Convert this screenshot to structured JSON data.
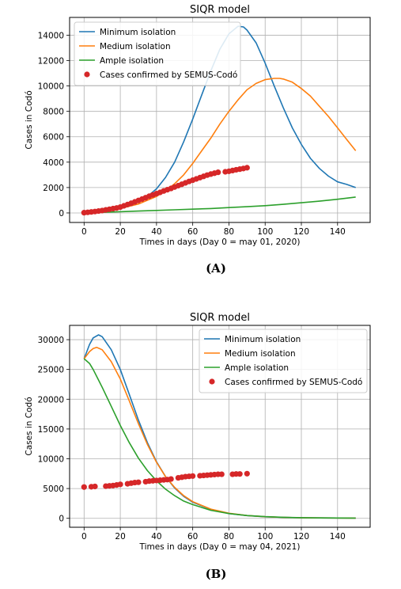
{
  "colors": {
    "minimum": "#1f77b4",
    "medium": "#ff7f0e",
    "ample": "#2ca02c",
    "cases": "#d62728"
  },
  "chart_data": [
    {
      "panel": "(A)",
      "type": "line",
      "title": "SIQR model",
      "xlabel": "Times in days (Day 0 = may 01, 2020)",
      "ylabel": "Cases in Codó",
      "xlim": [
        -8,
        158
      ],
      "ylim": [
        -750,
        15400
      ],
      "xticks": [
        0,
        20,
        40,
        60,
        80,
        100,
        120,
        140
      ],
      "yticks": [
        0,
        2000,
        4000,
        6000,
        8000,
        10000,
        12000,
        14000
      ],
      "grid": true,
      "legend": "top-left",
      "series": [
        {
          "name": "Minimum isolation",
          "color_key": "minimum",
          "x": [
            0,
            10,
            20,
            30,
            35,
            40,
            45,
            50,
            55,
            60,
            65,
            70,
            75,
            80,
            85,
            88,
            90,
            95,
            100,
            105,
            110,
            115,
            120,
            125,
            130,
            135,
            140,
            145,
            150
          ],
          "y": [
            0,
            150,
            400,
            900,
            1300,
            1900,
            2800,
            4000,
            5600,
            7400,
            9300,
            11200,
            12900,
            14100,
            14700,
            14650,
            14400,
            13400,
            11800,
            10000,
            8300,
            6700,
            5400,
            4300,
            3500,
            2900,
            2450,
            2250,
            2000
          ]
        },
        {
          "name": "Medium isolation",
          "color_key": "medium",
          "x": [
            0,
            10,
            20,
            30,
            40,
            45,
            50,
            55,
            60,
            65,
            70,
            75,
            80,
            85,
            90,
            95,
            100,
            105,
            108,
            110,
            115,
            120,
            125,
            130,
            135,
            140,
            145,
            150
          ],
          "y": [
            0,
            150,
            350,
            700,
            1300,
            1750,
            2300,
            3000,
            3900,
            4900,
            5900,
            7000,
            8000,
            8900,
            9700,
            10200,
            10500,
            10600,
            10600,
            10550,
            10300,
            9800,
            9200,
            8400,
            7600,
            6700,
            5800,
            4900
          ]
        },
        {
          "name": "Ample isolation",
          "color_key": "ample",
          "x": [
            0,
            10,
            20,
            30,
            40,
            50,
            60,
            70,
            80,
            90,
            100,
            110,
            120,
            130,
            140,
            150
          ],
          "y": [
            0,
            50,
            100,
            150,
            200,
            250,
            300,
            350,
            420,
            490,
            570,
            680,
            800,
            930,
            1080,
            1250
          ]
        },
        {
          "name": "Cases confirmed by SEMUS-Codó",
          "color_key": "cases",
          "style": "markers",
          "x": [
            0,
            2,
            4,
            6,
            8,
            10,
            12,
            14,
            16,
            18,
            20,
            22,
            24,
            26,
            28,
            30,
            32,
            34,
            36,
            38,
            40,
            42,
            44,
            46,
            48,
            50,
            52,
            54,
            56,
            58,
            60,
            62,
            64,
            66,
            68,
            70,
            72,
            74,
            78,
            80,
            82,
            84,
            86,
            88,
            90
          ],
          "y": [
            20,
            50,
            80,
            110,
            150,
            190,
            240,
            290,
            340,
            390,
            460,
            560,
            660,
            760,
            870,
            980,
            1090,
            1200,
            1320,
            1420,
            1520,
            1620,
            1730,
            1830,
            1930,
            2040,
            2150,
            2260,
            2370,
            2480,
            2580,
            2680,
            2780,
            2880,
            2980,
            3060,
            3130,
            3200,
            3240,
            3280,
            3340,
            3400,
            3450,
            3500,
            3560
          ]
        }
      ]
    },
    {
      "panel": "(B)",
      "type": "line",
      "title": "SIQR model",
      "xlabel": "Times in days (Day 0 = may 04, 2021)",
      "ylabel": "Cases in Codó",
      "xlim": [
        -8,
        158
      ],
      "ylim": [
        -1500,
        32400
      ],
      "xticks": [
        0,
        20,
        40,
        60,
        80,
        100,
        120,
        140
      ],
      "yticks": [
        0,
        5000,
        10000,
        15000,
        20000,
        25000,
        30000
      ],
      "grid": true,
      "legend": "top-right",
      "series": [
        {
          "name": "Minimum isolation",
          "color_key": "minimum",
          "x": [
            0,
            3,
            5,
            8,
            10,
            15,
            20,
            25,
            30,
            35,
            40,
            45,
            50,
            55,
            60,
            70,
            80,
            90,
            100,
            110,
            120,
            130,
            140,
            150
          ],
          "y": [
            26800,
            29200,
            30300,
            30800,
            30500,
            28300,
            25000,
            20800,
            16500,
            12700,
            9500,
            7000,
            5100,
            3700,
            2700,
            1500,
            800,
            450,
            260,
            160,
            100,
            70,
            50,
            40
          ]
        },
        {
          "name": "Medium isolation",
          "color_key": "medium",
          "x": [
            0,
            3,
            5,
            7,
            10,
            15,
            20,
            25,
            30,
            35,
            40,
            45,
            50,
            55,
            60,
            70,
            80,
            90,
            100,
            110,
            120,
            130,
            140,
            150
          ],
          "y": [
            26800,
            28000,
            28500,
            28700,
            28300,
            26300,
            23400,
            19700,
            15900,
            12400,
            9400,
            7000,
            5200,
            3800,
            2800,
            1550,
            850,
            470,
            270,
            160,
            100,
            70,
            50,
            40
          ]
        },
        {
          "name": "Ample isolation",
          "color_key": "ample",
          "x": [
            0,
            3,
            5,
            10,
            15,
            20,
            25,
            30,
            35,
            40,
            45,
            50,
            55,
            60,
            70,
            80,
            90,
            100,
            110,
            120,
            130,
            140,
            150
          ],
          "y": [
            26800,
            26000,
            25000,
            22000,
            18800,
            15600,
            12700,
            10100,
            8000,
            6300,
            4900,
            3800,
            2900,
            2300,
            1350,
            800,
            470,
            280,
            170,
            110,
            70,
            50,
            40
          ]
        },
        {
          "name": "Cases confirmed by SEMUS-Codó",
          "color_key": "cases",
          "style": "markers",
          "x": [
            0,
            4,
            6,
            12,
            14,
            16,
            18,
            20,
            24,
            26,
            28,
            30,
            34,
            36,
            38,
            40,
            42,
            44,
            46,
            48,
            52,
            54,
            56,
            58,
            60,
            64,
            66,
            68,
            70,
            72,
            74,
            76,
            82,
            84,
            86,
            90
          ],
          "y": [
            5250,
            5300,
            5350,
            5400,
            5450,
            5500,
            5600,
            5700,
            5800,
            5900,
            6000,
            6050,
            6150,
            6250,
            6300,
            6350,
            6400,
            6450,
            6500,
            6600,
            6800,
            6900,
            7000,
            7050,
            7100,
            7150,
            7200,
            7250,
            7300,
            7350,
            7400,
            7400,
            7400,
            7450,
            7450,
            7500
          ]
        }
      ]
    }
  ]
}
